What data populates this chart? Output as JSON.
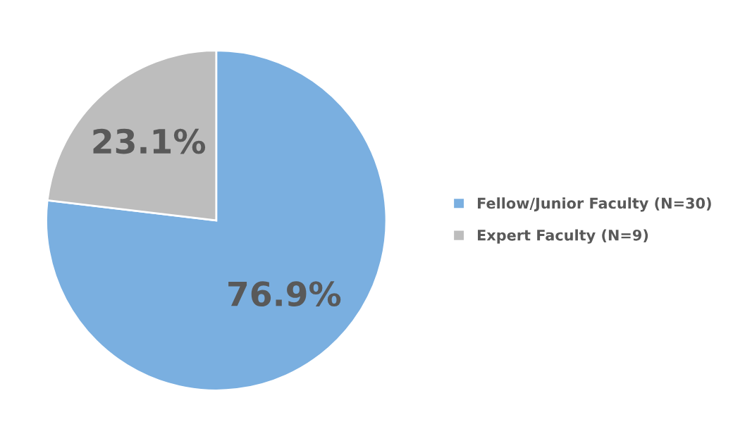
{
  "chart_data": {
    "type": "pie",
    "categories": [
      "Fellow/Junior Faculty (N=30)",
      "Expert Faculty (N=9)"
    ],
    "values": [
      76.9,
      23.1
    ],
    "value_labels": [
      "76.9%",
      "23.1%"
    ],
    "colors": [
      "#7aafe0",
      "#bdbdbd"
    ],
    "legend": "right"
  }
}
